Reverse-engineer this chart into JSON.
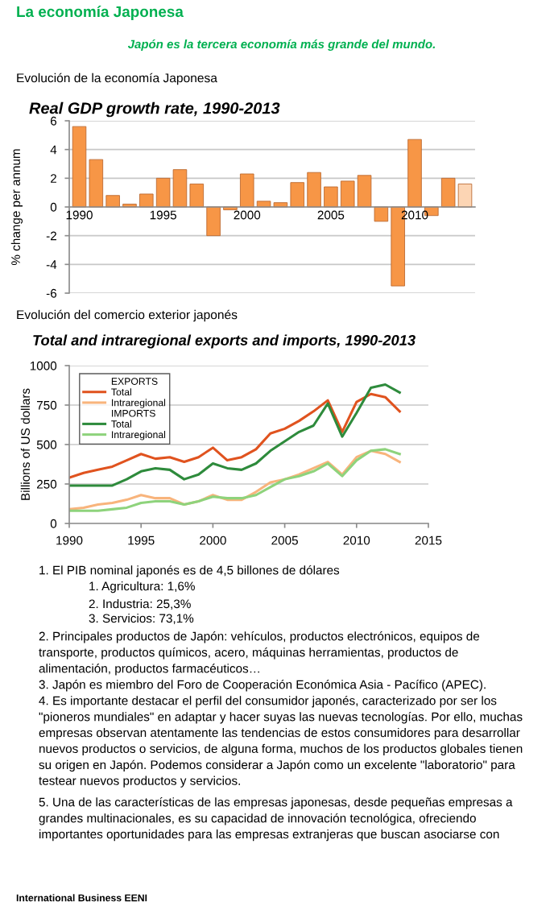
{
  "chart_data": [
    {
      "type": "bar",
      "title": "Real GDP growth rate, 1990-2013",
      "ylabel": "% change per annum",
      "categories": [
        "1990",
        null,
        null,
        null,
        null,
        "1995",
        null,
        null,
        null,
        null,
        "2000",
        null,
        null,
        null,
        null,
        "2005",
        null,
        null,
        null,
        null,
        "2010",
        null,
        null,
        null
      ],
      "values": [
        5.6,
        3.3,
        0.8,
        0.2,
        0.9,
        2.0,
        2.6,
        1.6,
        -2.0,
        -0.2,
        2.3,
        0.4,
        0.3,
        1.7,
        2.4,
        1.4,
        1.8,
        2.2,
        -1.0,
        -5.5,
        4.7,
        -0.6,
        2.0,
        1.6
      ],
      "colors": [
        "#f79646",
        "#f79646",
        "#f79646",
        "#f79646",
        "#f79646",
        "#f79646",
        "#f79646",
        "#f79646",
        "#f79646",
        "#f79646",
        "#f79646",
        "#f79646",
        "#f79646",
        "#f79646",
        "#f79646",
        "#f79646",
        "#f79646",
        "#f79646",
        "#f79646",
        "#f79646",
        "#f79646",
        "#f79646",
        "#f79646",
        "#fcd5b4"
      ],
      "ylim": [
        -6,
        6
      ],
      "yticks": [
        -6,
        -4,
        -2,
        0,
        2,
        4,
        6
      ],
      "grid": "y",
      "annotations": [
        "La economía Japonesa",
        "Japón es la tercera economía más grande del mundo.",
        "Evolución de la economía Japonesa"
      ]
    },
    {
      "type": "line",
      "title": "Total and intraregional exports and imports, 1990-2013",
      "ylabel": "Billions of US dollars",
      "x": [
        1990,
        1991,
        1992,
        1993,
        1994,
        1995,
        1996,
        1997,
        1998,
        1999,
        2000,
        2001,
        2002,
        2003,
        2004,
        2005,
        2006,
        2007,
        2008,
        2009,
        2010,
        2011,
        2012,
        2013
      ],
      "series": [
        {
          "name": "Total",
          "color": "#e0531f",
          "values": [
            290,
            320,
            340,
            360,
            400,
            440,
            410,
            420,
            390,
            420,
            480,
            400,
            420,
            470,
            570,
            600,
            650,
            710,
            780,
            580,
            770,
            820,
            800,
            710
          ]
        },
        {
          "name": "Intraregional",
          "color": "#f8b47c",
          "values": [
            90,
            100,
            120,
            130,
            150,
            180,
            160,
            160,
            120,
            140,
            180,
            150,
            150,
            200,
            260,
            280,
            310,
            350,
            390,
            310,
            420,
            460,
            440,
            390
          ]
        },
        {
          "name": "Total",
          "color": "#2e8b3c",
          "values": [
            240,
            240,
            240,
            240,
            280,
            330,
            350,
            340,
            280,
            310,
            380,
            350,
            340,
            380,
            460,
            520,
            580,
            620,
            760,
            550,
            700,
            860,
            880,
            830
          ]
        },
        {
          "name": "Intraregional",
          "color": "#8ed37c",
          "values": [
            80,
            80,
            80,
            90,
            100,
            130,
            140,
            140,
            120,
            140,
            170,
            160,
            160,
            180,
            230,
            280,
            300,
            330,
            380,
            300,
            400,
            460,
            470,
            440
          ]
        }
      ],
      "xlim": [
        1990,
        2015
      ],
      "xticks": [
        1990,
        1995,
        2000,
        2005,
        2010,
        2015
      ],
      "ylim": [
        0,
        1000
      ],
      "yticks": [
        0,
        250,
        500,
        750,
        1000
      ],
      "grid": "y",
      "legend": "top left",
      "marker": "none",
      "line_style": "solid",
      "annotations": [
        "EXPORTS",
        "IMPORTS",
        "Evolución del comercio exterior japonés",
        "1. El PIB nominal japonés es de 4,5 billones de dólares",
        "1. Agricultura: 1,6%",
        "2. Industria: 25,3%",
        "3. Servicios: 73,1%",
        "2. Principales productos de Japón: vehículos, productos electrónicos, equipos de transporte, productos químicos, acero, máquinas herramientas, productos de alimentación, productos farmacéuticos…",
        "3. Japón es miembro del Foro de Cooperación Económica Asia - Pacífico (APEC).",
        "4. Es importante destacar el perfil del consumidor japonés, caracterizado por ser los \"pioneros mundiales\" en adaptar y hacer suyas las nuevas tecnologías. Por ello, muchas empresas observan atentamente las tendencias de estos consumidores para desarrollar nuevos productos o servicios, de alguna forma, muchos de los productos globales tienen su origen en Japón. Podemos considerar a Japón como un excelente \"laboratorio\" para testear nuevos productos y servicios.",
        "5. Una de las características de las empresas japonesas, desde pequeñas empresas a grandes multinacionales, es su capacidad de innovación tecnológica, ofreciendo importantes oportunidades para las empresas extranjeras que buscan asociarse con",
        "International Business EENI"
      ]
    }
  ]
}
